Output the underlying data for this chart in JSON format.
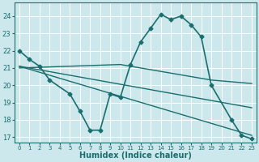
{
  "xlabel": "Humidex (Indice chaleur)",
  "bg_color": "#cce8ec",
  "grid_color": "#ffffff",
  "line_color": "#1a6e6e",
  "xlim": [
    -0.5,
    23.5
  ],
  "ylim": [
    16.7,
    24.8
  ],
  "yticks": [
    17,
    18,
    19,
    20,
    21,
    22,
    23,
    24
  ],
  "xticks": [
    0,
    1,
    2,
    3,
    4,
    5,
    6,
    7,
    8,
    9,
    10,
    11,
    12,
    13,
    14,
    15,
    16,
    17,
    18,
    19,
    20,
    21,
    22,
    23
  ],
  "series": [
    {
      "x": [
        0,
        1,
        2,
        3,
        5,
        6,
        7,
        8,
        9,
        10,
        11,
        12,
        13,
        14,
        15,
        16,
        17,
        18,
        19,
        21,
        22,
        23
      ],
      "y": [
        22.0,
        21.5,
        21.1,
        20.3,
        19.5,
        18.5,
        17.4,
        17.4,
        19.5,
        19.3,
        21.2,
        22.5,
        23.3,
        24.1,
        23.8,
        24.0,
        23.5,
        22.8,
        20.0,
        18.0,
        17.1,
        16.9
      ],
      "marker": "D",
      "markersize": 2.5,
      "linewidth": 1.2
    },
    {
      "x": [
        0,
        10,
        19,
        23
      ],
      "y": [
        21.0,
        21.2,
        20.3,
        20.1
      ],
      "marker": null,
      "linewidth": 1.0
    },
    {
      "x": [
        0,
        23
      ],
      "y": [
        21.1,
        17.1
      ],
      "marker": null,
      "linewidth": 1.0
    },
    {
      "x": [
        0,
        23
      ],
      "y": [
        21.1,
        18.7
      ],
      "marker": null,
      "linewidth": 1.0
    }
  ]
}
